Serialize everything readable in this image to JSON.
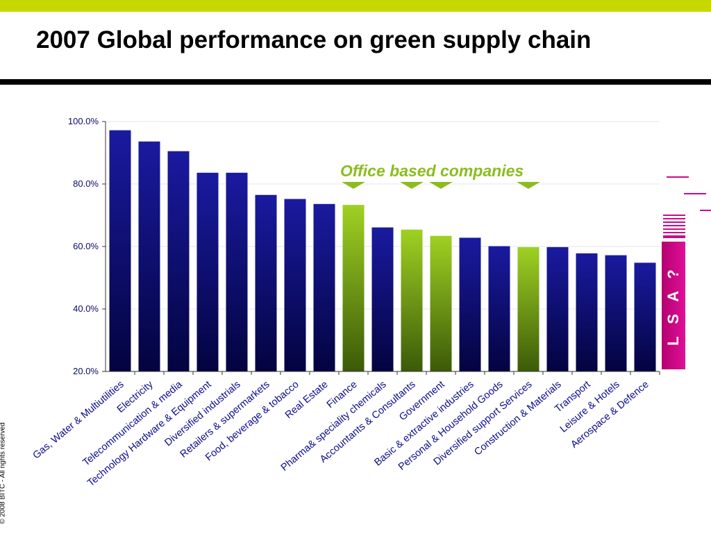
{
  "header": {
    "title": "2007 Global performance on green supply chain"
  },
  "footer": {
    "copyright": "© 2008 BITC - All rights reserved"
  },
  "annotation": {
    "label": "Office based companies",
    "color": "#8bbd1d"
  },
  "side_panel": {
    "label": "L S A ?",
    "color": "#cc0a88"
  },
  "colors": {
    "top_bar": "#c6d800",
    "bar_default": "#0a0a7a",
    "bar_highlight": "#8bbd1d"
  },
  "chart_data": {
    "type": "bar",
    "title": "",
    "xlabel": "",
    "ylabel": "",
    "ylim": [
      20,
      100
    ],
    "yticks": [
      "20.0%",
      "40.0%",
      "60.0%",
      "80.0%",
      "100.0%"
    ],
    "ytick_values": [
      20,
      40,
      60,
      80,
      100
    ],
    "grid": true,
    "categories": [
      "Gas, Water & Multiutilities",
      "Electricity",
      "Telecommunication & media",
      "Technology Hardware & Equipment",
      "Diversified industrials",
      "Retailers & supermarkets",
      "Food, beverage & tobacco",
      "Real Estate",
      "Finance",
      "Pharma& speciality chemicals",
      "Accountants & Consultants",
      "Government",
      "Basic & extractive industries",
      "Personal & Household Goods",
      "Diversified support Services",
      "Construction & Materials",
      "Transport",
      "Leisure & Hotels",
      "Aerospace & Defence"
    ],
    "values": [
      97.2,
      93.6,
      90.5,
      83.6,
      83.6,
      76.5,
      75.2,
      73.6,
      73.3,
      66.1,
      65.4,
      63.4,
      62.8,
      60.1,
      59.8,
      59.8,
      57.8,
      57.2,
      54.8
    ],
    "highlighted": [
      false,
      false,
      false,
      false,
      false,
      false,
      false,
      false,
      true,
      false,
      true,
      true,
      false,
      false,
      true,
      false,
      false,
      false,
      false
    ],
    "markers": [
      "Finance",
      "Accountants & Consultants",
      "Government",
      "Diversified support Services"
    ]
  }
}
